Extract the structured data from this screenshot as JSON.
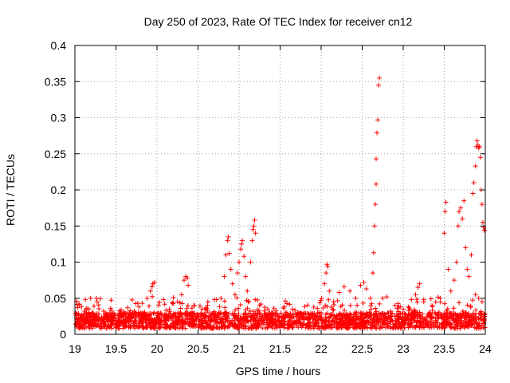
{
  "chart_data": {
    "type": "scatter",
    "title": "Day 250 of 2023, Rate Of TEC Index for receiver cn12",
    "xlabel": "GPS time / hours",
    "ylabel": "ROTI / TECUs",
    "xlim": [
      19,
      24
    ],
    "ylim": [
      0,
      0.4
    ],
    "xticks": [
      "19",
      "19.5",
      "20",
      "20.5",
      "21",
      "21.5",
      "22",
      "22.5",
      "23",
      "23.5",
      "24"
    ],
    "yticks": [
      "0",
      "0.05",
      "0.1",
      "0.15",
      "0.2",
      "0.25",
      "0.3",
      "0.35",
      "0.4"
    ],
    "grid": true,
    "marker": "plus",
    "color": "#ff0000",
    "series": [
      {
        "name": "ROTI",
        "points": [
          [
            19.02,
            0.046
          ],
          [
            19.05,
            0.042
          ],
          [
            19.08,
            0.038
          ],
          [
            19.12,
            0.032
          ],
          [
            19.18,
            0.025
          ],
          [
            19.25,
            0.022
          ],
          [
            19.35,
            0.02
          ],
          [
            19.45,
            0.018
          ],
          [
            19.55,
            0.018
          ],
          [
            19.65,
            0.019
          ],
          [
            19.72,
            0.03
          ],
          [
            19.78,
            0.038
          ],
          [
            19.82,
            0.043
          ],
          [
            19.88,
            0.05
          ],
          [
            19.92,
            0.06
          ],
          [
            19.95,
            0.07
          ],
          [
            19.97,
            0.072
          ],
          [
            19.94,
            0.066
          ],
          [
            20.02,
            0.04
          ],
          [
            20.08,
            0.048
          ],
          [
            20.15,
            0.035
          ],
          [
            20.25,
            0.045
          ],
          [
            20.3,
            0.055
          ],
          [
            20.33,
            0.075
          ],
          [
            20.35,
            0.08
          ],
          [
            20.37,
            0.078
          ],
          [
            20.38,
            0.068
          ],
          [
            20.45,
            0.04
          ],
          [
            20.55,
            0.035
          ],
          [
            20.62,
            0.045
          ],
          [
            20.7,
            0.048
          ],
          [
            20.78,
            0.05
          ],
          [
            20.82,
            0.08
          ],
          [
            20.84,
            0.11
          ],
          [
            20.86,
            0.13
          ],
          [
            20.87,
            0.135
          ],
          [
            20.88,
            0.112
          ],
          [
            20.9,
            0.09
          ],
          [
            20.92,
            0.07
          ],
          [
            20.95,
            0.055
          ],
          [
            20.98,
            0.085
          ],
          [
            21.0,
            0.1
          ],
          [
            21.02,
            0.118
          ],
          [
            21.03,
            0.125
          ],
          [
            21.04,
            0.13
          ],
          [
            21.06,
            0.108
          ],
          [
            21.08,
            0.08
          ],
          [
            21.1,
            0.06
          ],
          [
            21.12,
            0.045
          ],
          [
            21.14,
            0.1
          ],
          [
            21.16,
            0.13
          ],
          [
            21.17,
            0.145
          ],
          [
            21.18,
            0.15
          ],
          [
            21.19,
            0.158
          ],
          [
            21.2,
            0.14
          ],
          [
            21.25,
            0.04
          ],
          [
            21.35,
            0.035
          ],
          [
            21.45,
            0.033
          ],
          [
            21.55,
            0.038
          ],
          [
            21.65,
            0.035
          ],
          [
            21.75,
            0.03
          ],
          [
            21.85,
            0.028
          ],
          [
            21.95,
            0.025
          ],
          [
            22.0,
            0.03
          ],
          [
            22.04,
            0.07
          ],
          [
            22.06,
            0.085
          ],
          [
            22.07,
            0.097
          ],
          [
            22.08,
            0.094
          ],
          [
            22.1,
            0.06
          ],
          [
            22.15,
            0.045
          ],
          [
            22.22,
            0.058
          ],
          [
            22.28,
            0.066
          ],
          [
            22.35,
            0.06
          ],
          [
            22.42,
            0.05
          ],
          [
            22.48,
            0.068
          ],
          [
            22.52,
            0.072
          ],
          [
            22.55,
            0.063
          ],
          [
            22.6,
            0.05
          ],
          [
            22.63,
            0.085
          ],
          [
            22.64,
            0.113
          ],
          [
            22.65,
            0.15
          ],
          [
            22.66,
            0.18
          ],
          [
            22.67,
            0.208
          ],
          [
            22.67,
            0.243
          ],
          [
            22.68,
            0.279
          ],
          [
            22.69,
            0.297
          ],
          [
            22.7,
            0.345
          ],
          [
            22.71,
            0.355
          ],
          [
            22.75,
            0.05
          ],
          [
            22.8,
            0.052
          ],
          [
            22.9,
            0.04
          ],
          [
            23.0,
            0.035
          ],
          [
            23.1,
            0.048
          ],
          [
            23.15,
            0.055
          ],
          [
            23.18,
            0.065
          ],
          [
            23.2,
            0.07
          ],
          [
            23.25,
            0.045
          ],
          [
            23.35,
            0.04
          ],
          [
            23.45,
            0.05
          ],
          [
            23.5,
            0.14
          ],
          [
            23.51,
            0.17
          ],
          [
            23.52,
            0.183
          ],
          [
            23.55,
            0.09
          ],
          [
            23.58,
            0.06
          ],
          [
            23.62,
            0.075
          ],
          [
            23.65,
            0.1
          ],
          [
            23.67,
            0.15
          ],
          [
            23.68,
            0.17
          ],
          [
            23.7,
            0.175
          ],
          [
            23.72,
            0.16
          ],
          [
            23.74,
            0.185
          ],
          [
            23.76,
            0.12
          ],
          [
            23.78,
            0.09
          ],
          [
            23.8,
            0.08
          ],
          [
            23.83,
            0.11
          ],
          [
            23.85,
            0.195
          ],
          [
            23.86,
            0.21
          ],
          [
            23.88,
            0.233
          ],
          [
            23.89,
            0.26
          ],
          [
            23.9,
            0.268
          ],
          [
            23.91,
            0.262
          ],
          [
            23.92,
            0.258
          ],
          [
            23.93,
            0.26
          ],
          [
            23.94,
            0.245
          ],
          [
            23.95,
            0.2
          ],
          [
            23.96,
            0.18
          ],
          [
            23.97,
            0.155
          ],
          [
            23.98,
            0.148
          ],
          [
            23.99,
            0.144
          ],
          [
            23.88,
            0.055
          ],
          [
            23.92,
            0.05
          ],
          [
            23.96,
            0.045
          ]
        ]
      }
    ]
  }
}
